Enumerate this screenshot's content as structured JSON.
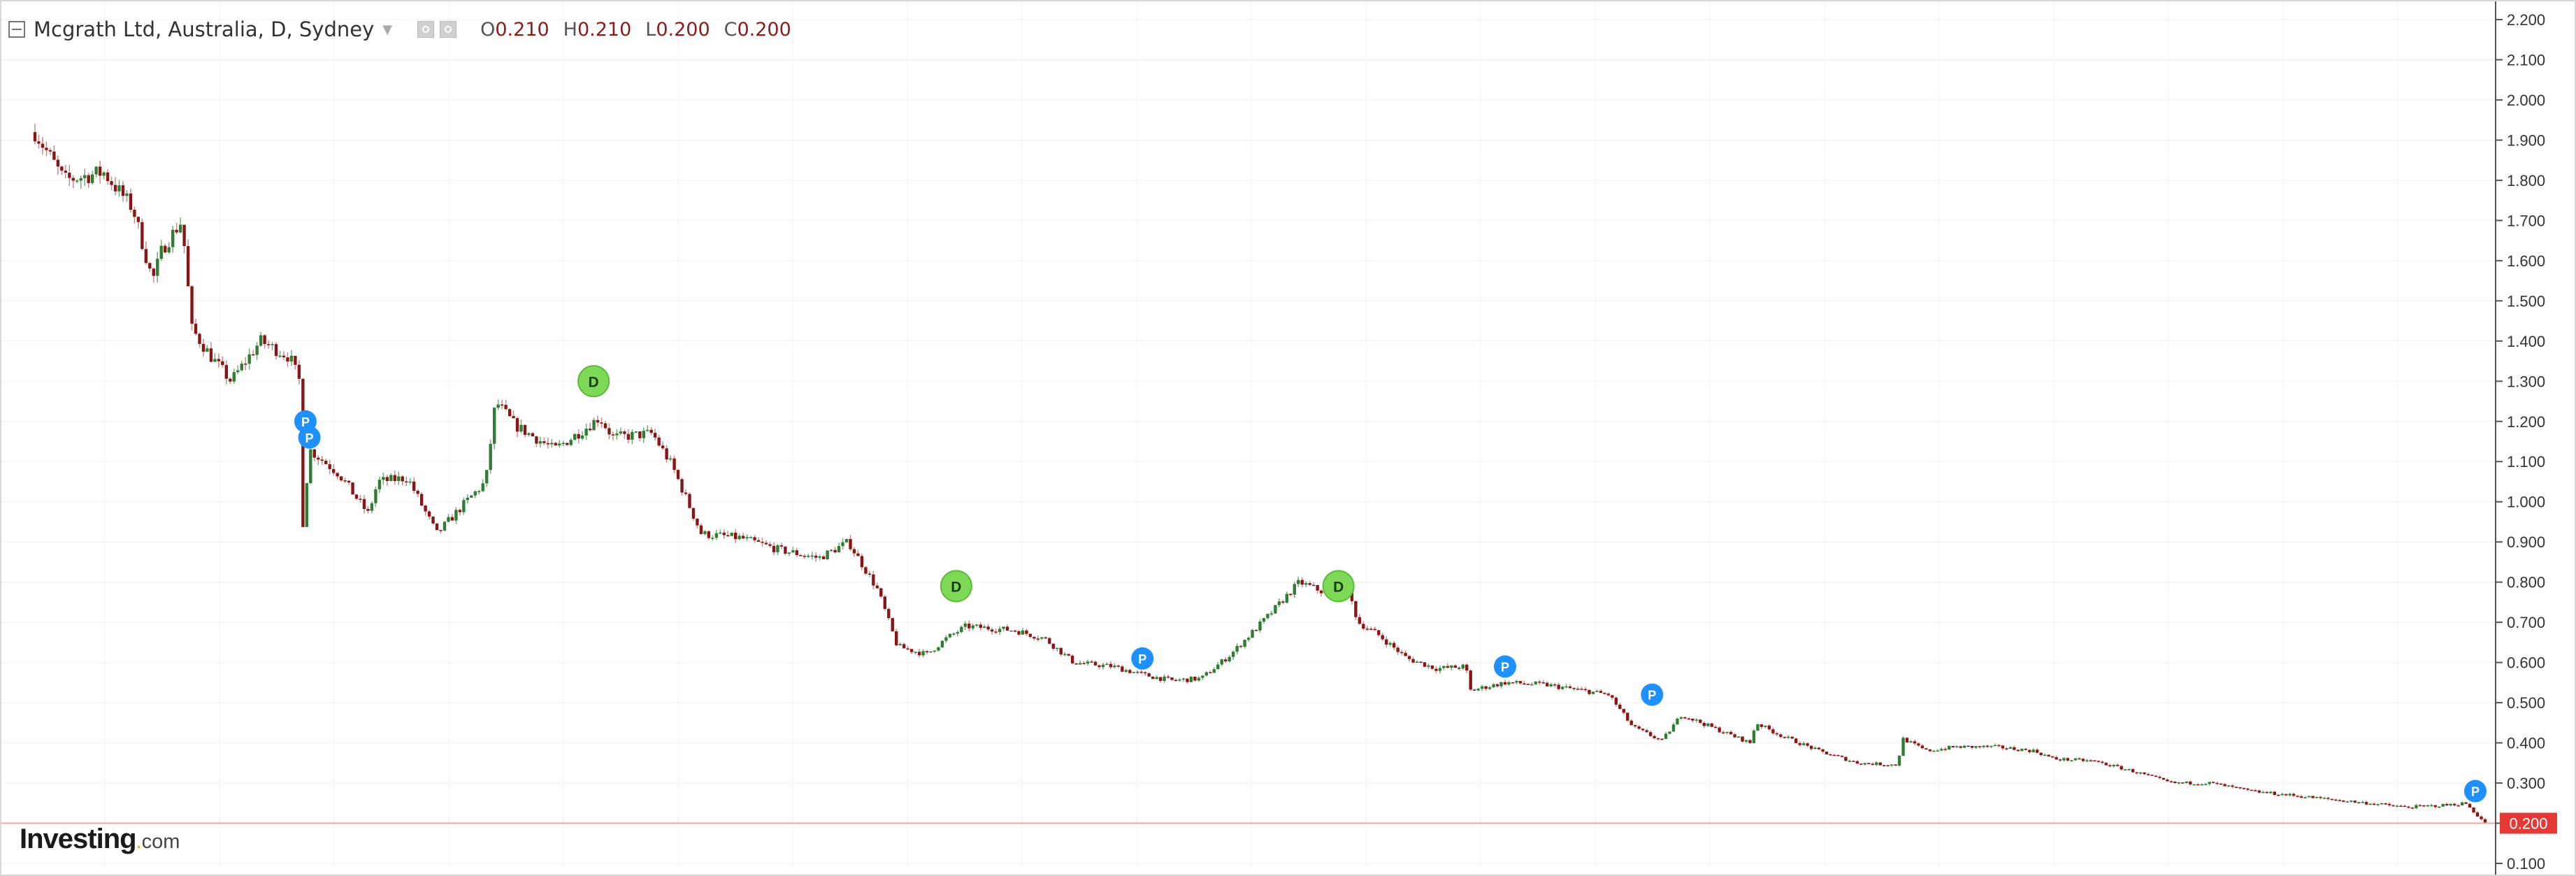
{
  "header": {
    "title": "Mcgrath Ltd, Australia, D, Sydney",
    "ohlc": [
      {
        "key": "O",
        "value": "0.210"
      },
      {
        "key": "H",
        "value": "0.210"
      },
      {
        "key": "L",
        "value": "0.200"
      },
      {
        "key": "C",
        "value": "0.200"
      }
    ]
  },
  "brand": {
    "name": "Investing",
    "suffix": "com"
  },
  "colors": {
    "up": "#2e7d32",
    "down": "#8b1414",
    "dividend": "#7ed957",
    "pivot": "#1e90ff",
    "last_price": "#e53935",
    "grid": "#f0f0f0"
  },
  "icons": {
    "collapse": "collapse-icon",
    "settings": "gear-icon"
  },
  "chart_data": {
    "type": "candlestick",
    "title": "Mcgrath Ltd, Australia, D, Sydney",
    "ylim": [
      0.1,
      2.2
    ],
    "y_ticks": [
      "2.200",
      "2.100",
      "2.000",
      "1.900",
      "1.800",
      "1.700",
      "1.600",
      "1.500",
      "1.400",
      "1.300",
      "1.200",
      "1.100",
      "1.000",
      "0.900",
      "0.800",
      "0.700",
      "0.600",
      "0.500",
      "0.400",
      "0.300",
      "0.200",
      "0.100"
    ],
    "last_price": "0.200",
    "grid": true,
    "series_close_path": [
      [
        0,
        1.92
      ],
      [
        1.5,
        1.8
      ],
      [
        3.5,
        1.82
      ],
      [
        5,
        1.73
      ],
      [
        6,
        1.55
      ],
      [
        6.5,
        1.63
      ],
      [
        7.5,
        1.7
      ],
      [
        8,
        1.43
      ],
      [
        9,
        1.36
      ],
      [
        10,
        1.3
      ],
      [
        11.5,
        1.4
      ],
      [
        13,
        1.36
      ],
      [
        13.5,
        1.3
      ],
      [
        13.55,
        0.88
      ],
      [
        14,
        1.13
      ],
      [
        15.5,
        1.07
      ],
      [
        17,
        0.97
      ],
      [
        17.5,
        1.05
      ],
      [
        19,
        1.06
      ],
      [
        20.5,
        0.92
      ],
      [
        22,
        1.0
      ],
      [
        23,
        1.05
      ],
      [
        23.5,
        1.25
      ],
      [
        24.5,
        1.19
      ],
      [
        26.5,
        1.13
      ],
      [
        28,
        1.18
      ],
      [
        28.8,
        1.21
      ],
      [
        29.5,
        1.16
      ],
      [
        31.5,
        1.17
      ],
      [
        32.5,
        1.09
      ],
      [
        34,
        0.92
      ],
      [
        36,
        0.91
      ],
      [
        38,
        0.88
      ],
      [
        40,
        0.86
      ],
      [
        41.5,
        0.9
      ],
      [
        42,
        0.86
      ],
      [
        43,
        0.78
      ],
      [
        44,
        0.64
      ],
      [
        45.5,
        0.62
      ],
      [
        46.5,
        0.66
      ],
      [
        47.5,
        0.69
      ],
      [
        50,
        0.68
      ],
      [
        51.5,
        0.66
      ],
      [
        53,
        0.6
      ],
      [
        55,
        0.59
      ],
      [
        56.5,
        0.57
      ],
      [
        58,
        0.555
      ],
      [
        59.5,
        0.56
      ],
      [
        61,
        0.62
      ],
      [
        63,
        0.72
      ],
      [
        64.5,
        0.8
      ],
      [
        66,
        0.77
      ],
      [
        67,
        0.78
      ],
      [
        67.5,
        0.7
      ],
      [
        68.5,
        0.67
      ],
      [
        70,
        0.61
      ],
      [
        71.5,
        0.585
      ],
      [
        73,
        0.59
      ],
      [
        73.2,
        0.53
      ],
      [
        75,
        0.55
      ],
      [
        77,
        0.545
      ],
      [
        79,
        0.53
      ],
      [
        80.3,
        0.52
      ],
      [
        81.5,
        0.44
      ],
      [
        83,
        0.405
      ],
      [
        84,
        0.47
      ],
      [
        86,
        0.43
      ],
      [
        87.5,
        0.4
      ],
      [
        87.8,
        0.45
      ],
      [
        89,
        0.42
      ],
      [
        91,
        0.38
      ],
      [
        93,
        0.35
      ],
      [
        95,
        0.345
      ],
      [
        95.3,
        0.41
      ],
      [
        96.5,
        0.38
      ],
      [
        98,
        0.39
      ],
      [
        100,
        0.39
      ],
      [
        102,
        0.38
      ],
      [
        103,
        0.36
      ],
      [
        105,
        0.355
      ],
      [
        107,
        0.33
      ],
      [
        109,
        0.3
      ],
      [
        111,
        0.3
      ],
      [
        113,
        0.28
      ],
      [
        115,
        0.27
      ],
      [
        117,
        0.26
      ],
      [
        119,
        0.25
      ],
      [
        121,
        0.24
      ],
      [
        123,
        0.245
      ],
      [
        124,
        0.25
      ],
      [
        125,
        0.2
      ]
    ],
    "events": [
      {
        "type": "P",
        "t": 13.8,
        "value": 1.2
      },
      {
        "type": "P",
        "t": 14.0,
        "value": 1.16
      },
      {
        "type": "D",
        "t": 28.5,
        "value": 1.3
      },
      {
        "type": "D",
        "t": 47.0,
        "value": 0.79
      },
      {
        "type": "P",
        "t": 56.5,
        "value": 0.61
      },
      {
        "type": "D",
        "t": 66.5,
        "value": 0.79
      },
      {
        "type": "P",
        "t": 75.0,
        "value": 0.59
      },
      {
        "type": "P",
        "t": 82.5,
        "value": 0.52
      },
      {
        "type": "P",
        "t": 124.5,
        "value": 0.28
      }
    ]
  }
}
